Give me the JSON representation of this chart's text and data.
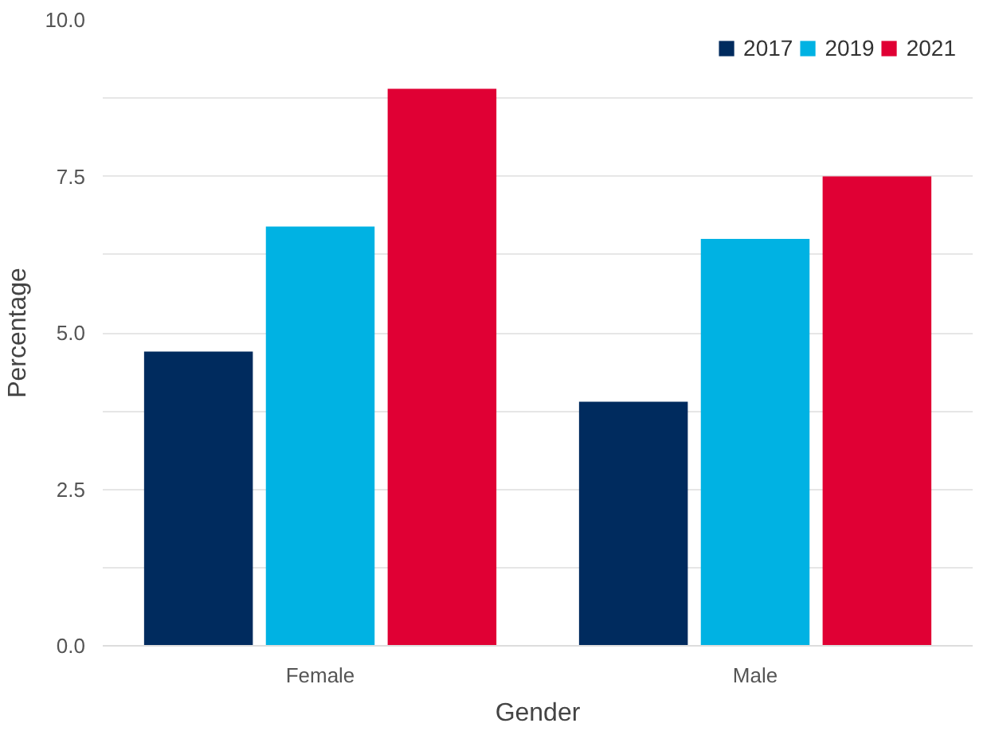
{
  "chart_data": {
    "type": "bar",
    "xlabel": "Gender",
    "ylabel": "Percentage",
    "categories": [
      "Female",
      "Male"
    ],
    "series": [
      {
        "name": "2017",
        "color": "#002b5e",
        "values": [
          4.7,
          3.9
        ]
      },
      {
        "name": "2019",
        "color": "#00b2e3",
        "values": [
          6.7,
          6.5
        ]
      },
      {
        "name": "2021",
        "color": "#e00034",
        "values": [
          8.9,
          7.5
        ]
      }
    ],
    "ylim": [
      0,
      10
    ],
    "yticks": [
      {
        "value": 0,
        "label": "0.0"
      },
      {
        "value": 1.25,
        "label": null
      },
      2.5,
      {
        "value": 3.75,
        "label": null
      },
      {
        "value": 5,
        "label": "5.0"
      },
      {
        "value": 6.25,
        "label": null
      },
      7.5,
      {
        "value": 8.75,
        "label": null
      },
      {
        "value": 10,
        "label": "10.0"
      }
    ],
    "grid": "y",
    "legend": "top right"
  }
}
